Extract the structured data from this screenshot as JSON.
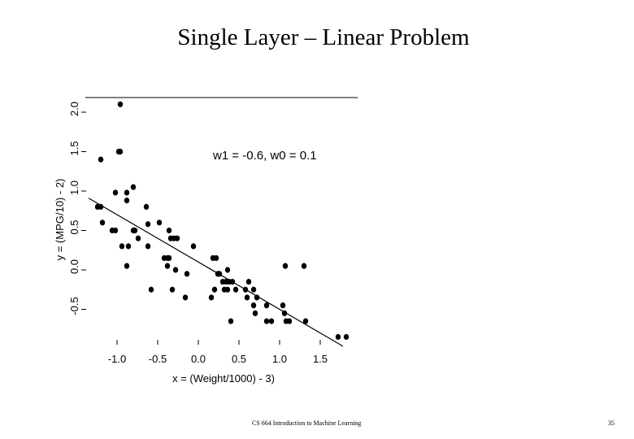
{
  "slide": {
    "title": "Single Layer – Linear Problem",
    "footer": "CS 664 Introduction to Machine Learning",
    "page_number": "35"
  },
  "chart_data": {
    "type": "scatter",
    "title": "",
    "xlabel": "x = (Weight/1000) - 3)",
    "ylabel": "y = (MPG/10) - 2)",
    "xlim": [
      -1.35,
      1.9
    ],
    "ylim": [
      -0.85,
      2.2
    ],
    "xticks": [
      -1.0,
      -0.5,
      0.0,
      0.5,
      1.0,
      1.5
    ],
    "xtick_labels": [
      "-1.0",
      "-0.5",
      "0.0",
      "0.5",
      "1.0",
      "1.5"
    ],
    "yticks": [
      -0.5,
      0.0,
      0.5,
      1.0,
      1.5,
      2.0
    ],
    "ytick_labels": [
      "-0.5",
      "0.0",
      "0.5",
      "1.0",
      "1.5",
      "2.0"
    ],
    "grid": false,
    "annotation": "w1 = -0.6, w0 = 0.1",
    "fit_line": {
      "w1": -0.6,
      "w0": 0.1,
      "x_range": [
        -1.35,
        1.78
      ]
    },
    "points": [
      [
        -0.96,
        2.1
      ],
      [
        -0.98,
        1.5
      ],
      [
        -0.96,
        1.5
      ],
      [
        -1.2,
        1.4
      ],
      [
        -0.8,
        1.05
      ],
      [
        -1.02,
        0.98
      ],
      [
        -0.88,
        0.98
      ],
      [
        -0.88,
        0.88
      ],
      [
        -1.24,
        0.8
      ],
      [
        -1.2,
        0.8
      ],
      [
        -0.64,
        0.8
      ],
      [
        -1.18,
        0.6
      ],
      [
        -0.48,
        0.6
      ],
      [
        -0.62,
        0.58
      ],
      [
        -1.06,
        0.5
      ],
      [
        -1.02,
        0.5
      ],
      [
        -0.8,
        0.5
      ],
      [
        -0.78,
        0.5
      ],
      [
        -0.36,
        0.5
      ],
      [
        -0.74,
        0.4
      ],
      [
        -0.34,
        0.4
      ],
      [
        -0.3,
        0.4
      ],
      [
        -0.26,
        0.4
      ],
      [
        -0.94,
        0.3
      ],
      [
        -0.86,
        0.3
      ],
      [
        -0.62,
        0.3
      ],
      [
        -0.06,
        0.3
      ],
      [
        -0.42,
        0.15
      ],
      [
        -0.38,
        0.15
      ],
      [
        -0.36,
        0.15
      ],
      [
        0.18,
        0.15
      ],
      [
        0.22,
        0.15
      ],
      [
        -0.88,
        0.05
      ],
      [
        -0.38,
        0.05
      ],
      [
        -0.28,
        0.0
      ],
      [
        0.36,
        0.0
      ],
      [
        1.07,
        0.05
      ],
      [
        1.3,
        0.05
      ],
      [
        -0.14,
        -0.05
      ],
      [
        0.24,
        -0.05
      ],
      [
        0.26,
        -0.05
      ],
      [
        0.3,
        -0.15
      ],
      [
        0.34,
        -0.15
      ],
      [
        0.38,
        -0.15
      ],
      [
        0.42,
        -0.15
      ],
      [
        0.62,
        -0.15
      ],
      [
        0.2,
        -0.25
      ],
      [
        0.32,
        -0.25
      ],
      [
        0.36,
        -0.25
      ],
      [
        0.46,
        -0.25
      ],
      [
        0.58,
        -0.25
      ],
      [
        0.68,
        -0.25
      ],
      [
        -0.58,
        -0.25
      ],
      [
        -0.32,
        -0.25
      ],
      [
        -0.16,
        -0.35
      ],
      [
        0.16,
        -0.35
      ],
      [
        0.6,
        -0.35
      ],
      [
        0.72,
        -0.35
      ],
      [
        0.68,
        -0.45
      ],
      [
        0.84,
        -0.45
      ],
      [
        1.04,
        -0.45
      ],
      [
        0.7,
        -0.55
      ],
      [
        1.06,
        -0.55
      ],
      [
        0.4,
        -0.65
      ],
      [
        0.84,
        -0.65
      ],
      [
        0.9,
        -0.65
      ],
      [
        1.08,
        -0.65
      ],
      [
        1.12,
        -0.65
      ],
      [
        1.32,
        -0.65
      ],
      [
        1.72,
        -0.85
      ],
      [
        1.82,
        -0.85
      ]
    ]
  }
}
